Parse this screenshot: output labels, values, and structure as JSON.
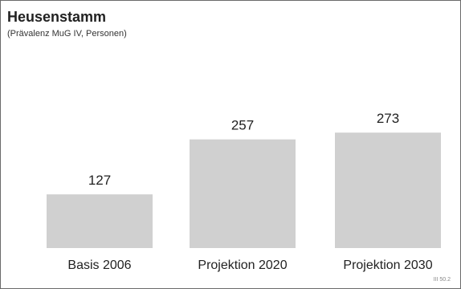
{
  "chart_data": {
    "type": "bar",
    "title": "Heusenstamm",
    "subtitle": "(Prävalenz MuG IV, Personen)",
    "categories": [
      "Basis 2006",
      "Projektion 2020",
      "Projektion 2030"
    ],
    "values": [
      127,
      257,
      273
    ],
    "data_labels": [
      "127",
      "257",
      "273"
    ],
    "xlabel": "",
    "ylabel": "",
    "ylim": [
      0,
      300
    ],
    "grid": false,
    "legend": "none",
    "bar_color": "#d0d0d0"
  },
  "reference": "III 50.2"
}
